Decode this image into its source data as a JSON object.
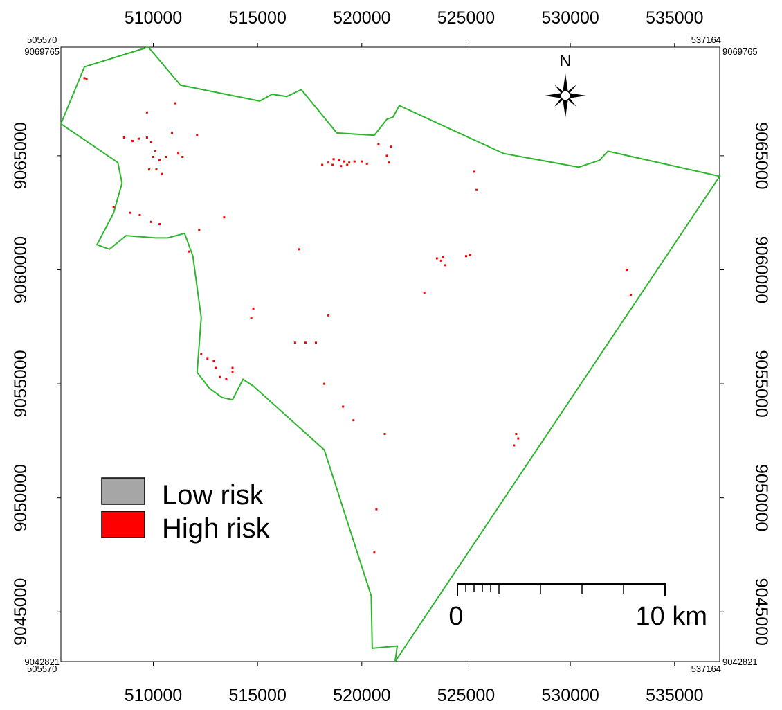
{
  "map": {
    "extent": {
      "x_min": 505570,
      "x_max": 537164,
      "y_min": 9042821,
      "y_max": 9069765
    },
    "corner_labels": {
      "top_left_x": "505570",
      "top_right_x": "537164",
      "bottom_left_x": "505570",
      "bottom_right_x": "537164",
      "top_left_y": "9069765",
      "top_right_y": "9069765",
      "bottom_left_y": "9042821",
      "bottom_right_y": "9042821"
    },
    "x_ticks": [
      {
        "value": 510000,
        "label": "510000"
      },
      {
        "value": 515000,
        "label": "515000"
      },
      {
        "value": 520000,
        "label": "520000"
      },
      {
        "value": 525000,
        "label": "525000"
      },
      {
        "value": 530000,
        "label": "530000"
      },
      {
        "value": 535000,
        "label": "535000"
      }
    ],
    "y_ticks": [
      {
        "value": 9065000,
        "label": "9065000"
      },
      {
        "value": 9060000,
        "label": "9060000"
      },
      {
        "value": 9055000,
        "label": "9055000"
      },
      {
        "value": 9050000,
        "label": "9050000"
      },
      {
        "value": 9045000,
        "label": "9045000"
      }
    ],
    "boundary_color": "#2db52d",
    "boundary": [
      [
        509760,
        9069765
      ],
      [
        511300,
        9068100
      ],
      [
        515100,
        9067400
      ],
      [
        515700,
        9067700
      ],
      [
        516400,
        9067600
      ],
      [
        517100,
        9067900
      ],
      [
        518800,
        9066000
      ],
      [
        520600,
        9065900
      ],
      [
        521200,
        9066600
      ],
      [
        521500,
        9066700
      ],
      [
        521800,
        9067200
      ],
      [
        526800,
        9065100
      ],
      [
        530400,
        9064500
      ],
      [
        531400,
        9064800
      ],
      [
        531800,
        9065200
      ],
      [
        537164,
        9064100
      ],
      [
        521600,
        9042821
      ],
      [
        521700,
        9043500
      ],
      [
        520500,
        9043400
      ],
      [
        520450,
        9045700
      ],
      [
        518200,
        9052100
      ],
      [
        514800,
        9054900
      ],
      [
        514300,
        9055200
      ],
      [
        513800,
        9054300
      ],
      [
        513300,
        9054400
      ],
      [
        512700,
        9054800
      ],
      [
        512100,
        9055500
      ],
      [
        512300,
        9057900
      ],
      [
        511900,
        9060600
      ],
      [
        511500,
        9061600
      ],
      [
        510700,
        9061400
      ],
      [
        510100,
        9061400
      ],
      [
        508700,
        9061500
      ],
      [
        507900,
        9060900
      ],
      [
        507300,
        9061100
      ],
      [
        508100,
        9062500
      ],
      [
        508500,
        9063800
      ],
      [
        508300,
        9064700
      ],
      [
        505570,
        9066400
      ],
      [
        506700,
        9068900
      ],
      [
        509760,
        9069765
      ]
    ],
    "high_risk_color": "#ff0000",
    "high_risk_cells": [
      [
        506700,
        9068400
      ],
      [
        506800,
        9068350
      ],
      [
        509700,
        9066900
      ],
      [
        511050,
        9067300
      ],
      [
        509300,
        9065750
      ],
      [
        509700,
        9065800
      ],
      [
        509900,
        9065600
      ],
      [
        508600,
        9065800
      ],
      [
        509000,
        9065650
      ],
      [
        510900,
        9066000
      ],
      [
        511200,
        9065100
      ],
      [
        511400,
        9064950
      ],
      [
        512100,
        9065900
      ],
      [
        510100,
        9065200
      ],
      [
        510000,
        9064950
      ],
      [
        510300,
        9064800
      ],
      [
        509800,
        9064400
      ],
      [
        510150,
        9064400
      ],
      [
        510400,
        9064200
      ],
      [
        510600,
        9064950
      ],
      [
        508100,
        9062750
      ],
      [
        508900,
        9062500
      ],
      [
        509350,
        9062400
      ],
      [
        509900,
        9062100
      ],
      [
        510300,
        9062000
      ],
      [
        512200,
        9061750
      ],
      [
        511700,
        9060800
      ],
      [
        513400,
        9062300
      ],
      [
        518100,
        9064600
      ],
      [
        518400,
        9064700
      ],
      [
        518650,
        9064850
      ],
      [
        518900,
        9064800
      ],
      [
        519150,
        9064750
      ],
      [
        519400,
        9064700
      ],
      [
        519650,
        9064750
      ],
      [
        520000,
        9064750
      ],
      [
        520250,
        9064650
      ],
      [
        518600,
        9064600
      ],
      [
        519000,
        9064550
      ],
      [
        519300,
        9064600
      ],
      [
        521200,
        9065000
      ],
      [
        521400,
        9065400
      ],
      [
        521300,
        9064700
      ],
      [
        520800,
        9065500
      ],
      [
        525400,
        9064300
      ],
      [
        525500,
        9063500
      ],
      [
        523600,
        9060500
      ],
      [
        523800,
        9060400
      ],
      [
        524000,
        9060200
      ],
      [
        523900,
        9060550
      ],
      [
        525000,
        9060600
      ],
      [
        525200,
        9060650
      ],
      [
        517000,
        9060900
      ],
      [
        523000,
        9059000
      ],
      [
        532700,
        9060000
      ],
      [
        532900,
        9058900
      ],
      [
        514800,
        9058300
      ],
      [
        514700,
        9057900
      ],
      [
        516800,
        9056800
      ],
      [
        517300,
        9056800
      ],
      [
        517800,
        9056800
      ],
      [
        512300,
        9056300
      ],
      [
        512600,
        9056100
      ],
      [
        512900,
        9056000
      ],
      [
        513000,
        9055700
      ],
      [
        513800,
        9055700
      ],
      [
        513800,
        9055500
      ],
      [
        513500,
        9055200
      ],
      [
        513200,
        9055300
      ],
      [
        518200,
        9055000
      ],
      [
        519100,
        9054000
      ],
      [
        519600,
        9053400
      ],
      [
        521100,
        9052800
      ],
      [
        527400,
        9052800
      ],
      [
        527500,
        9052600
      ],
      [
        527300,
        9052300
      ],
      [
        520700,
        9049500
      ],
      [
        520600,
        9047600
      ],
      [
        518400,
        9058000
      ]
    ],
    "north_arrow": {
      "label": "N",
      "icon": "compass-rose-icon"
    },
    "scale_bar": {
      "zero_label": "0",
      "end_label": "10 km"
    },
    "legend": [
      {
        "label": "Low risk",
        "color": "#a6a6a6"
      },
      {
        "label": "High risk",
        "color": "#ff0000"
      }
    ]
  }
}
